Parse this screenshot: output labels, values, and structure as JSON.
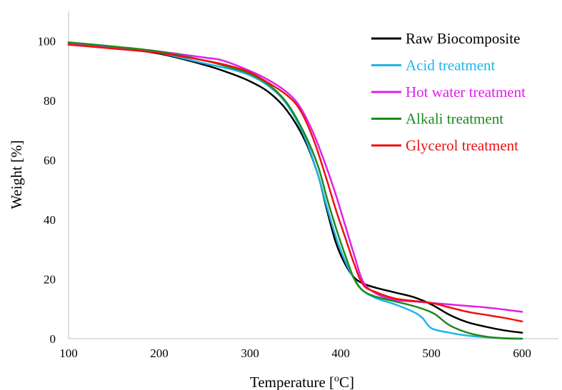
{
  "chart_data": {
    "type": "line",
    "title": "",
    "xlabel": "Temperature [",
    "xlabel_sup": "o",
    "xlabel_end": "C]",
    "ylabel": "Weight [%]",
    "xlim": [
      100,
      640
    ],
    "ylim": [
      0,
      110
    ],
    "xticks": [
      100,
      200,
      300,
      400,
      500,
      600
    ],
    "yticks": [
      0,
      20,
      40,
      60,
      80,
      100
    ],
    "grid": false,
    "legend_position": "top-right",
    "series": [
      {
        "name": "Raw Biocomposite",
        "color": "#000000",
        "points": [
          [
            100,
            99
          ],
          [
            150,
            97.8
          ],
          [
            200,
            95.8
          ],
          [
            250,
            92
          ],
          [
            280,
            89
          ],
          [
            300,
            86.5
          ],
          [
            320,
            83
          ],
          [
            340,
            77
          ],
          [
            360,
            67
          ],
          [
            375,
            55
          ],
          [
            385,
            43
          ],
          [
            395,
            32
          ],
          [
            405,
            25
          ],
          [
            415,
            20.5
          ],
          [
            425,
            18.5
          ],
          [
            440,
            17
          ],
          [
            460,
            15.5
          ],
          [
            480,
            14
          ],
          [
            500,
            11.5
          ],
          [
            520,
            8
          ],
          [
            540,
            5.5
          ],
          [
            560,
            4
          ],
          [
            580,
            2.8
          ],
          [
            600,
            2
          ]
        ]
      },
      {
        "name": "Acid treatment",
        "color": "#1fb4ea",
        "points": [
          [
            100,
            99.3
          ],
          [
            150,
            98
          ],
          [
            200,
            96
          ],
          [
            250,
            92.5
          ],
          [
            280,
            90.5
          ],
          [
            300,
            88.5
          ],
          [
            320,
            85
          ],
          [
            340,
            79
          ],
          [
            360,
            68
          ],
          [
            375,
            55
          ],
          [
            385,
            44
          ],
          [
            395,
            34
          ],
          [
            405,
            26
          ],
          [
            415,
            20
          ],
          [
            425,
            16
          ],
          [
            440,
            13.5
          ],
          [
            460,
            11.5
          ],
          [
            480,
            9
          ],
          [
            490,
            7
          ],
          [
            500,
            3.5
          ],
          [
            520,
            2
          ],
          [
            540,
            1
          ],
          [
            560,
            0.5
          ],
          [
            580,
            0.2
          ],
          [
            600,
            0
          ]
        ]
      },
      {
        "name": "Hot water treatment",
        "color": "#e020e8",
        "points": [
          [
            100,
            99.3
          ],
          [
            150,
            98
          ],
          [
            200,
            96.5
          ],
          [
            250,
            94.5
          ],
          [
            270,
            93.5
          ],
          [
            300,
            90
          ],
          [
            320,
            87
          ],
          [
            340,
            83
          ],
          [
            355,
            78
          ],
          [
            370,
            69
          ],
          [
            385,
            57
          ],
          [
            395,
            48
          ],
          [
            405,
            38
          ],
          [
            415,
            28
          ],
          [
            425,
            19
          ],
          [
            440,
            15
          ],
          [
            460,
            13
          ],
          [
            480,
            12.5
          ],
          [
            500,
            12
          ],
          [
            520,
            11.5
          ],
          [
            540,
            11
          ],
          [
            560,
            10.5
          ],
          [
            580,
            9.8
          ],
          [
            600,
            9
          ]
        ]
      },
      {
        "name": "Alkali treatment",
        "color": "#1d8a1d",
        "points": [
          [
            100,
            99.6
          ],
          [
            150,
            98.2
          ],
          [
            200,
            96.5
          ],
          [
            250,
            93.5
          ],
          [
            280,
            91
          ],
          [
            300,
            89
          ],
          [
            320,
            85.5
          ],
          [
            340,
            79.5
          ],
          [
            360,
            69
          ],
          [
            375,
            58
          ],
          [
            385,
            47
          ],
          [
            395,
            37
          ],
          [
            405,
            28
          ],
          [
            415,
            20
          ],
          [
            425,
            16
          ],
          [
            440,
            14
          ],
          [
            460,
            12.5
          ],
          [
            480,
            11
          ],
          [
            495,
            9.5
          ],
          [
            505,
            8
          ],
          [
            520,
            4.5
          ],
          [
            540,
            2
          ],
          [
            560,
            0.7
          ],
          [
            580,
            0.1
          ],
          [
            600,
            0
          ]
        ]
      },
      {
        "name": "Glycerol treatment",
        "color": "#ee1111",
        "points": [
          [
            100,
            98.8
          ],
          [
            150,
            97.5
          ],
          [
            200,
            96
          ],
          [
            250,
            93.5
          ],
          [
            280,
            91.5
          ],
          [
            300,
            89.5
          ],
          [
            320,
            86
          ],
          [
            340,
            82
          ],
          [
            355,
            77
          ],
          [
            370,
            67
          ],
          [
            385,
            53
          ],
          [
            395,
            43
          ],
          [
            405,
            34
          ],
          [
            415,
            25
          ],
          [
            425,
            18
          ],
          [
            440,
            15.5
          ],
          [
            460,
            13.5
          ],
          [
            480,
            12.7
          ],
          [
            500,
            12
          ],
          [
            520,
            10.5
          ],
          [
            540,
            9
          ],
          [
            560,
            8
          ],
          [
            580,
            7
          ],
          [
            600,
            5.8
          ]
        ]
      }
    ]
  }
}
